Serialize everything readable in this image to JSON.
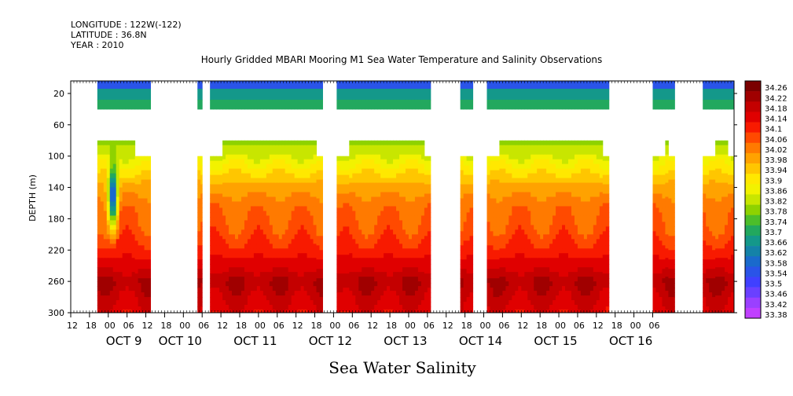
{
  "header": {
    "longitude": "LONGITUDE : 122W(-122)",
    "latitude": "LATITUDE : 36.8N",
    "year": "YEAR : 2010"
  },
  "chart_data": {
    "type": "heatmap",
    "title": "Hourly Gridded MBARI Mooring M1 Sea Water Temperature and Salinity Observations",
    "xlabel": "Sea Water Salinity",
    "ylabel": "DEPTH (m)",
    "y_axis": {
      "ticks": [
        20,
        60,
        100,
        140,
        180,
        220,
        260,
        300
      ],
      "range": [
        4,
        300
      ],
      "inverted": true
    },
    "x_axis": {
      "hour_ticks": [
        "12",
        "18",
        "00",
        "06",
        "12",
        "18",
        "00",
        "06",
        "12",
        "18",
        "00",
        "06",
        "12",
        "18",
        "00",
        "06",
        "12",
        "18",
        "00",
        "06",
        "12",
        "18",
        "00",
        "06",
        "12",
        "18",
        "00",
        "06",
        "12",
        "18",
        "00",
        "06"
      ],
      "date_labels": [
        "OCT  9",
        "OCT 10",
        "OCT 11",
        "OCT 12",
        "OCT 13",
        "OCT 14",
        "OCT 15",
        "OCT 16"
      ],
      "range_hours_from_oct8_12": [
        0,
        212
      ]
    },
    "colorbar": {
      "levels": [
        "34.26",
        "34.22",
        "34.18",
        "34.14",
        "34.1",
        "34.06",
        "34.02",
        "33.98",
        "33.94",
        "33.9",
        "33.86",
        "33.82",
        "33.78",
        "33.74",
        "33.7",
        "33.66",
        "33.62",
        "33.58",
        "33.54",
        "33.5",
        "33.46",
        "33.42",
        "33.38"
      ],
      "colors": [
        "#7a0000",
        "#a00000",
        "#c40000",
        "#e00000",
        "#f81a00",
        "#ff4a00",
        "#ff7a00",
        "#ffa200",
        "#ffc600",
        "#ffe800",
        "#f2f200",
        "#c8e600",
        "#8ed200",
        "#4cbe2a",
        "#22a85e",
        "#14988a",
        "#1482a8",
        "#1a6acc",
        "#2a54e8",
        "#4040ff",
        "#6a40ff",
        "#9a40ff",
        "#c040ff"
      ]
    },
    "depth_profile": {
      "depths": [
        10,
        20,
        40,
        80,
        100,
        140,
        160,
        200,
        240,
        260,
        300
      ],
      "salinity": [
        33.54,
        33.66,
        33.72,
        33.78,
        33.84,
        33.98,
        34.02,
        34.06,
        34.14,
        34.2,
        34.14
      ]
    },
    "data_periods": [
      {
        "start": 8.5,
        "end": 25.5
      },
      {
        "start": 40.5,
        "end": 42
      },
      {
        "start": 44.5,
        "end": 80.5
      },
      {
        "start": 85,
        "end": 115
      },
      {
        "start": 124.5,
        "end": 128.5
      },
      {
        "start": 133,
        "end": 172
      },
      {
        "start": 186,
        "end": 193
      },
      {
        "start": 202,
        "end": 212
      }
    ],
    "anomaly": {
      "hour": 13,
      "depth_center": 150,
      "min_salinity": 33.54
    }
  }
}
